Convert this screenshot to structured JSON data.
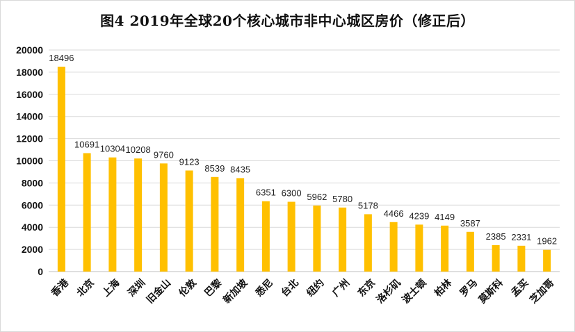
{
  "chart_data": {
    "type": "bar",
    "title": "图4 2019年全球20个核心城市非中心城区房价（修正后）",
    "categories": [
      "香港",
      "北京",
      "上海",
      "深圳",
      "旧金山",
      "伦敦",
      "巴黎",
      "新加坡",
      "悉尼",
      "台北",
      "纽约",
      "广州",
      "东京",
      "洛杉矶",
      "波士顿",
      "柏林",
      "罗马",
      "莫斯科",
      "孟买",
      "芝加哥"
    ],
    "values": [
      18496,
      10691,
      10304,
      10208,
      9760,
      9123,
      8539,
      8435,
      6351,
      6300,
      5962,
      5780,
      5178,
      4466,
      4239,
      4149,
      3587,
      2385,
      2331,
      1962
    ],
    "ylim": [
      0,
      20000
    ],
    "yticks": [
      0,
      2000,
      4000,
      6000,
      8000,
      10000,
      12000,
      14000,
      16000,
      18000,
      20000
    ],
    "xlabel": "",
    "ylabel": "",
    "grid": true,
    "bar_color": "#FFC000",
    "grid_color": "#D9D9D9",
    "axis_color": "#BFBFBF"
  }
}
